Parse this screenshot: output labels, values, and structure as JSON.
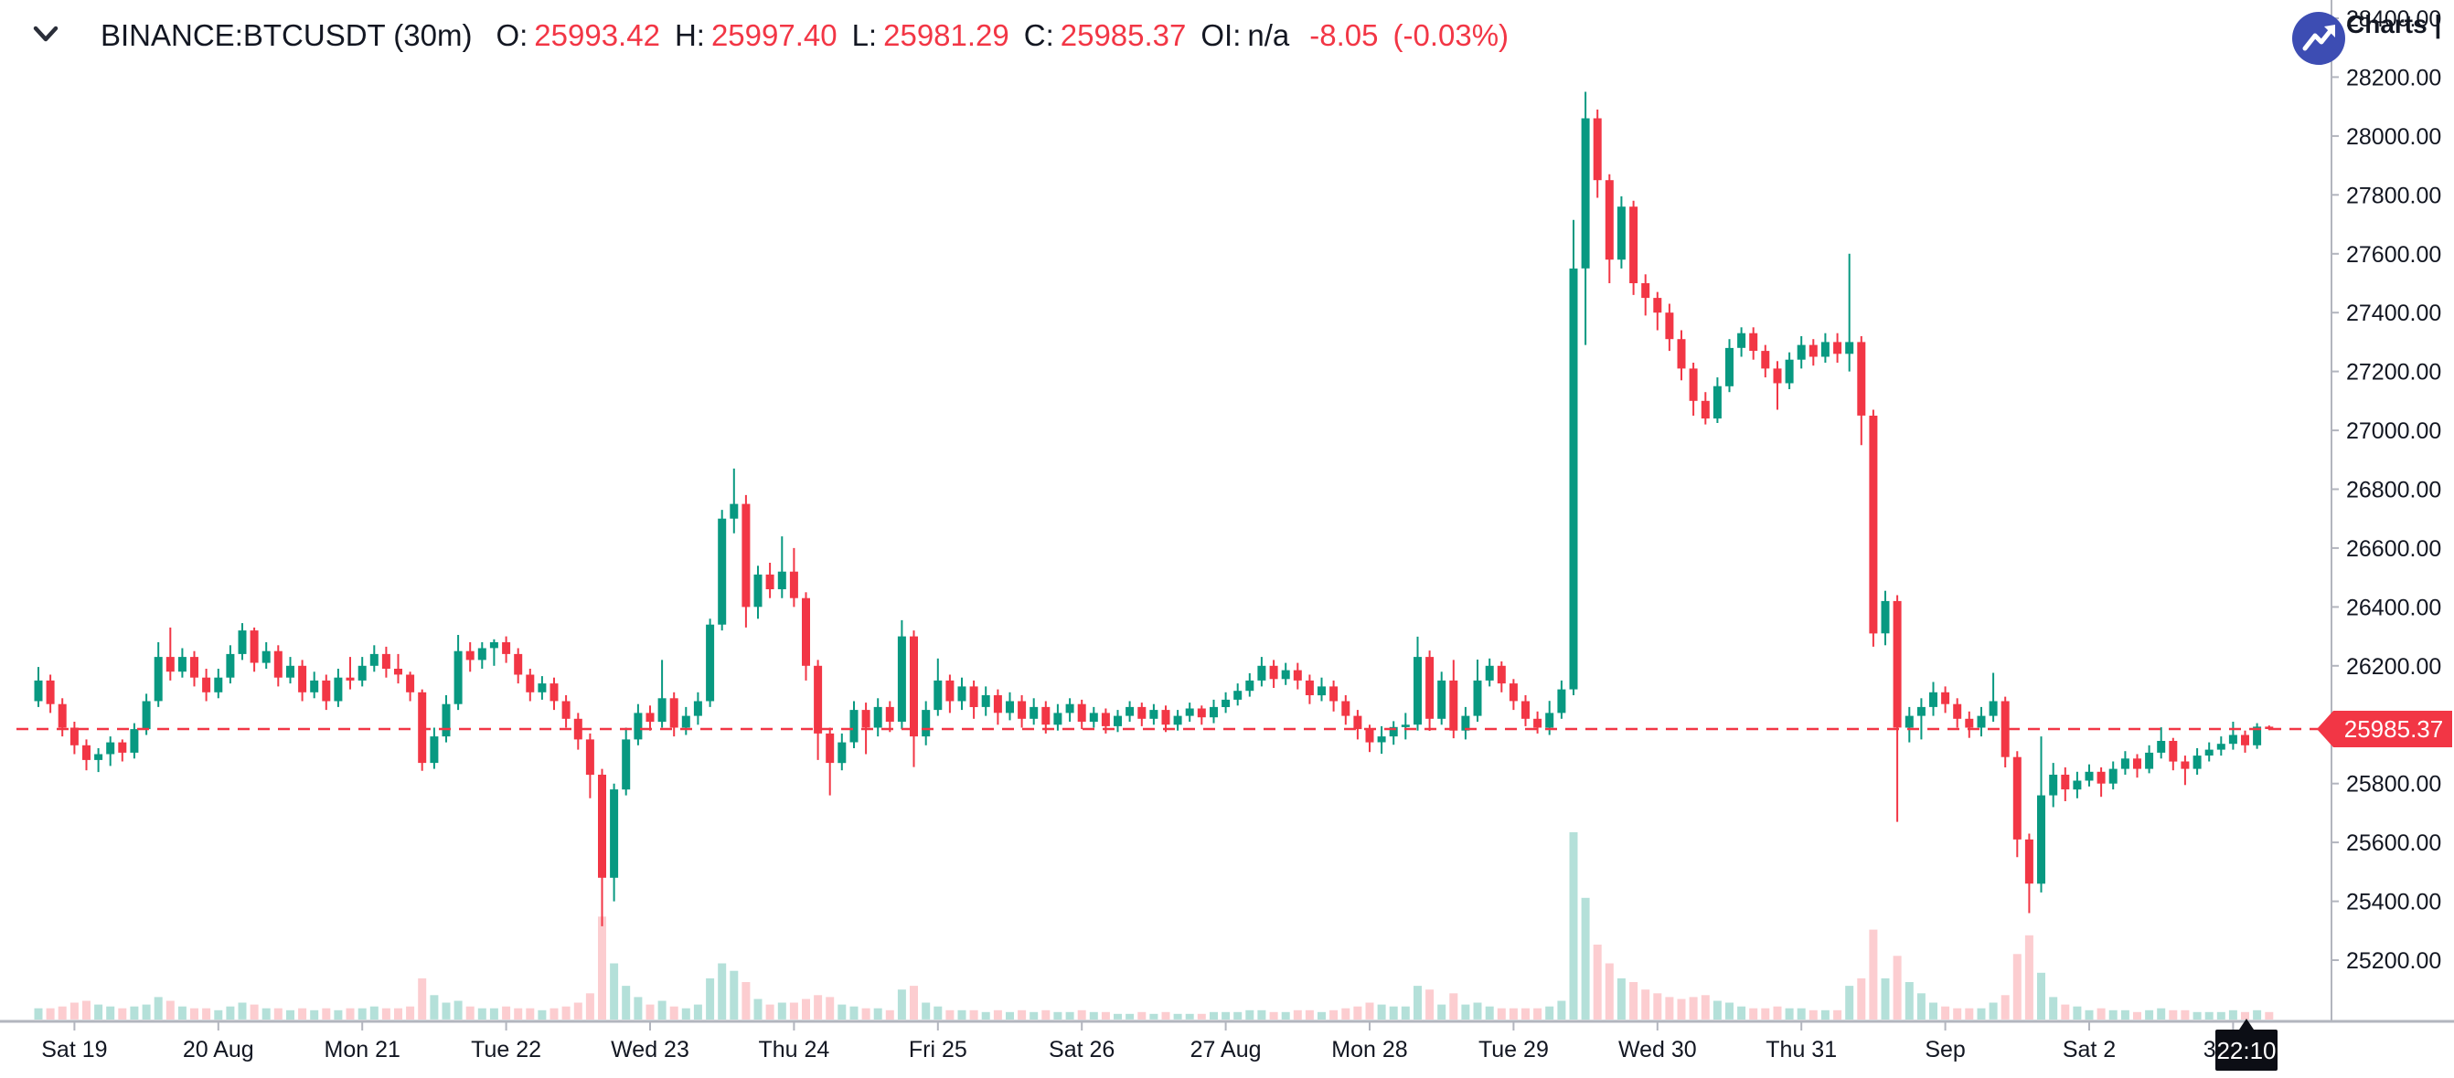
{
  "header": {
    "symbol": "BINANCE:BTCUSDT (30m)",
    "fields": [
      {
        "label": "O:",
        "value": "25993.42"
      },
      {
        "label": "H:",
        "value": "25997.40"
      },
      {
        "label": "L:",
        "value": "25981.29"
      },
      {
        "label": "C:",
        "value": "25985.37"
      },
      {
        "label": "OI:",
        "value": "n/a"
      }
    ],
    "change": "-8.05",
    "change_pct": "(-0.03%)"
  },
  "branding": {
    "charts_label": "Charts |"
  },
  "current_price": {
    "value": "25985.37",
    "time": "22:10"
  },
  "colors": {
    "up": "#089981",
    "down": "#f23645",
    "vol_up": "rgba(8,153,129,0.30)",
    "vol_down": "rgba(242,54,69,0.25)",
    "axis_line": "#b2b5be",
    "text": "#131722",
    "last_price": "#f23645",
    "time_tag_bg": "#0c0e15",
    "logo_blue": "#3d4db3"
  },
  "chart_data": {
    "type": "candlestick",
    "symbol": "BINANCE:BTCUSDT",
    "interval": "30m",
    "title": "BINANCE:BTCUSDT (30m)",
    "last_price": 25985.37,
    "last_candle": {
      "o": 25993.42,
      "h": 25997.4,
      "l": 25981.29,
      "c": 25985.37
    },
    "change": -8.05,
    "change_pct": -0.03,
    "open_interest": "n/a",
    "grid": false,
    "price_axis": {
      "side": "right",
      "min": 25200,
      "max": 28400,
      "step": 200,
      "labels": [
        "28400.00",
        "28200.00",
        "28000.00",
        "27800.00",
        "27600.00",
        "27400.00",
        "27200.00",
        "27000.00",
        "26800.00",
        "26600.00",
        "26400.00",
        "26200.00",
        "26000.00",
        "25800.00",
        "25600.00",
        "25400.00",
        "25200.00"
      ],
      "y_of_max": 20,
      "y_of_min": 1051
    },
    "time_axis": {
      "labels": [
        "Sat 19",
        "20 Aug",
        "Mon 21",
        "Tue 22",
        "Wed 23",
        "Thu 24",
        "Fri 25",
        "Sat 26",
        "27 Aug",
        "Mon 28",
        "Tue 29",
        "Wed 30",
        "Thu 31",
        "Sep",
        "Sat 2",
        "3 Sep"
      ],
      "candles_per_day": 12,
      "first_label_candle_index": 3
    },
    "volume_scale_max": 100,
    "candles_note": "each entry [open,high,low,close,relative_volume_0_100], ~2h aggregation of the 30m series as depicted",
    "candles": [
      [
        26080,
        26196,
        26060,
        26150,
        6
      ],
      [
        26150,
        26170,
        26040,
        26070,
        6
      ],
      [
        26070,
        26090,
        25960,
        25990,
        7
      ],
      [
        25990,
        26010,
        25900,
        25930,
        9
      ],
      [
        25930,
        25950,
        25845,
        25880,
        10
      ],
      [
        25880,
        25920,
        25839,
        25900,
        8
      ],
      [
        25900,
        25960,
        25860,
        25940,
        7
      ],
      [
        25940,
        25950,
        25875,
        25905,
        6
      ],
      [
        25905,
        26005,
        25885,
        25985,
        7
      ],
      [
        25985,
        26105,
        25965,
        26080,
        8
      ],
      [
        26080,
        26280,
        26060,
        26230,
        12
      ],
      [
        26230,
        26330,
        26150,
        26180,
        10
      ],
      [
        26180,
        26260,
        26160,
        26230,
        7
      ],
      [
        26230,
        26250,
        26130,
        26160,
        6
      ],
      [
        26160,
        26190,
        26080,
        26110,
        6
      ],
      [
        26110,
        26190,
        26090,
        26160,
        5
      ],
      [
        26160,
        26270,
        26140,
        26240,
        7
      ],
      [
        26240,
        26345,
        26220,
        26320,
        9
      ],
      [
        26320,
        26330,
        26180,
        26210,
        8
      ],
      [
        26210,
        26280,
        26190,
        26250,
        6
      ],
      [
        26250,
        26270,
        26130,
        26160,
        6
      ],
      [
        26160,
        26230,
        26140,
        26200,
        5
      ],
      [
        26200,
        26220,
        26080,
        26110,
        6
      ],
      [
        26110,
        26180,
        26090,
        26150,
        5
      ],
      [
        26150,
        26170,
        26050,
        26080,
        6
      ],
      [
        26080,
        26190,
        26060,
        26160,
        5
      ],
      [
        26160,
        26230,
        26120,
        26150,
        6
      ],
      [
        26150,
        26230,
        26130,
        26200,
        6
      ],
      [
        26200,
        26270,
        26180,
        26240,
        7
      ],
      [
        26240,
        26265,
        26160,
        26190,
        6
      ],
      [
        26190,
        26240,
        26140,
        26170,
        6
      ],
      [
        26170,
        26180,
        26080,
        26110,
        7
      ],
      [
        26110,
        26120,
        25843,
        25870,
        22
      ],
      [
        25870,
        25990,
        25850,
        25960,
        13
      ],
      [
        25960,
        26100,
        25940,
        26070,
        9
      ],
      [
        26070,
        26305,
        26050,
        26250,
        10
      ],
      [
        26250,
        26280,
        26180,
        26220,
        7
      ],
      [
        26220,
        26280,
        26190,
        26260,
        6
      ],
      [
        26260,
        26290,
        26200,
        26280,
        6
      ],
      [
        26280,
        26300,
        26210,
        26240,
        7
      ],
      [
        26240,
        26260,
        26140,
        26170,
        6
      ],
      [
        26170,
        26190,
        26080,
        26110,
        6
      ],
      [
        26110,
        26165,
        26085,
        26140,
        5
      ],
      [
        26140,
        26160,
        26050,
        26080,
        6
      ],
      [
        26080,
        26100,
        25990,
        26020,
        7
      ],
      [
        26020,
        26040,
        25915,
        25950,
        9
      ],
      [
        25950,
        25970,
        25750,
        25830,
        14
      ],
      [
        25830,
        25850,
        25315,
        25480,
        55
      ],
      [
        25480,
        25800,
        25400,
        25780,
        30
      ],
      [
        25780,
        25990,
        25760,
        25950,
        18
      ],
      [
        25950,
        26070,
        25930,
        26040,
        12
      ],
      [
        26040,
        26065,
        25980,
        26010,
        8
      ],
      [
        26010,
        26220,
        25990,
        26090,
        10
      ],
      [
        26090,
        26110,
        25960,
        25990,
        7
      ],
      [
        25990,
        26060,
        25965,
        26030,
        6
      ],
      [
        26030,
        26110,
        26000,
        26080,
        8
      ],
      [
        26080,
        26360,
        26060,
        26340,
        22
      ],
      [
        26340,
        26730,
        26320,
        26700,
        30
      ],
      [
        26700,
        26870,
        26650,
        26750,
        26
      ],
      [
        26750,
        26780,
        26330,
        26400,
        20
      ],
      [
        26400,
        26540,
        26360,
        26510,
        11
      ],
      [
        26510,
        26550,
        26430,
        26460,
        8
      ],
      [
        26460,
        26640,
        26430,
        26520,
        9
      ],
      [
        26520,
        26600,
        26400,
        26430,
        9
      ],
      [
        26430,
        26450,
        26150,
        26200,
        11
      ],
      [
        26200,
        26220,
        25880,
        25970,
        13
      ],
      [
        25970,
        25990,
        25760,
        25870,
        12
      ],
      [
        25870,
        25970,
        25845,
        25940,
        8
      ],
      [
        25940,
        26080,
        25920,
        26050,
        7
      ],
      [
        26050,
        26075,
        25900,
        25990,
        6
      ],
      [
        25990,
        26090,
        25960,
        26060,
        6
      ],
      [
        26060,
        26080,
        25975,
        26010,
        5
      ],
      [
        26010,
        26355,
        25985,
        26300,
        16
      ],
      [
        26300,
        26320,
        25856,
        25960,
        18
      ],
      [
        25960,
        26080,
        25930,
        26050,
        9
      ],
      [
        26050,
        26225,
        26030,
        26150,
        7
      ],
      [
        26150,
        26170,
        26040,
        26080,
        5
      ],
      [
        26080,
        26160,
        26050,
        26130,
        5
      ],
      [
        26130,
        26150,
        26020,
        26060,
        5
      ],
      [
        26060,
        26130,
        26030,
        26100,
        4
      ],
      [
        26100,
        26120,
        26000,
        26040,
        5
      ],
      [
        26040,
        26110,
        26015,
        26080,
        4
      ],
      [
        26080,
        26100,
        25990,
        26020,
        5
      ],
      [
        26020,
        26090,
        26000,
        26060,
        4
      ],
      [
        26060,
        26080,
        25970,
        26000,
        5
      ],
      [
        26000,
        26070,
        25980,
        26040,
        4
      ],
      [
        26040,
        26090,
        26010,
        26070,
        4
      ],
      [
        26070,
        26085,
        25985,
        26010,
        5
      ],
      [
        26010,
        26060,
        25990,
        26040,
        4
      ],
      [
        26040,
        26055,
        25970,
        25995,
        4
      ],
      [
        25995,
        26050,
        25975,
        26030,
        3
      ],
      [
        26030,
        26080,
        26010,
        26060,
        3
      ],
      [
        26060,
        26075,
        25995,
        26020,
        4
      ],
      [
        26020,
        26070,
        26000,
        26050,
        3
      ],
      [
        26050,
        26065,
        25975,
        26000,
        4
      ],
      [
        26000,
        26050,
        25980,
        26030,
        3
      ],
      [
        26030,
        26075,
        26010,
        26055,
        3
      ],
      [
        26055,
        26065,
        26000,
        26025,
        3
      ],
      [
        26025,
        26085,
        26005,
        26060,
        4
      ],
      [
        26060,
        26110,
        26040,
        26085,
        4
      ],
      [
        26085,
        26140,
        26065,
        26115,
        4
      ],
      [
        26115,
        26175,
        26095,
        26150,
        5
      ],
      [
        26150,
        26230,
        26130,
        26200,
        5
      ],
      [
        26200,
        26220,
        26125,
        26155,
        4
      ],
      [
        26155,
        26210,
        26135,
        26185,
        4
      ],
      [
        26185,
        26210,
        26120,
        26150,
        5
      ],
      [
        26150,
        26170,
        26070,
        26100,
        5
      ],
      [
        26100,
        26160,
        26080,
        26130,
        4
      ],
      [
        26130,
        26150,
        26045,
        26080,
        5
      ],
      [
        26080,
        26100,
        26000,
        26030,
        6
      ],
      [
        26030,
        26050,
        25950,
        25985,
        7
      ],
      [
        25985,
        26000,
        25907,
        25940,
        9
      ],
      [
        25940,
        25995,
        25901,
        25960,
        8
      ],
      [
        25960,
        26012,
        25932,
        25992,
        7
      ],
      [
        25992,
        26040,
        25950,
        26000,
        7
      ],
      [
        26000,
        26299,
        25980,
        26230,
        18
      ],
      [
        26230,
        26252,
        25979,
        26020,
        16
      ],
      [
        26020,
        26180,
        26000,
        26150,
        8
      ],
      [
        26150,
        26220,
        25954,
        25980,
        14
      ],
      [
        25980,
        26060,
        25950,
        26030,
        8
      ],
      [
        26030,
        26221,
        26010,
        26150,
        9
      ],
      [
        26150,
        26225,
        26130,
        26200,
        7
      ],
      [
        26200,
        26215,
        26110,
        26140,
        6
      ],
      [
        26140,
        26155,
        26050,
        26080,
        6
      ],
      [
        26080,
        26100,
        25995,
        26020,
        6
      ],
      [
        26020,
        26045,
        25970,
        25990,
        6
      ],
      [
        25990,
        26081,
        25965,
        26040,
        7
      ],
      [
        26040,
        26150,
        26020,
        26120,
        10
      ],
      [
        26120,
        27715,
        26100,
        27550,
        100
      ],
      [
        27550,
        28150,
        27290,
        28060,
        65
      ],
      [
        28060,
        28090,
        27790,
        27850,
        40
      ],
      [
        27850,
        27870,
        27500,
        27580,
        30
      ],
      [
        27580,
        27795,
        27550,
        27760,
        22
      ],
      [
        27760,
        27780,
        27460,
        27500,
        20
      ],
      [
        27500,
        27530,
        27390,
        27450,
        16
      ],
      [
        27450,
        27470,
        27340,
        27400,
        14
      ],
      [
        27400,
        27430,
        27270,
        27310,
        12
      ],
      [
        27310,
        27340,
        27170,
        27210,
        11
      ],
      [
        27210,
        27230,
        27050,
        27100,
        12
      ],
      [
        27100,
        27130,
        27020,
        27040,
        13
      ],
      [
        27040,
        27180,
        27025,
        27150,
        10
      ],
      [
        27150,
        27310,
        27130,
        27280,
        9
      ],
      [
        27280,
        27350,
        27250,
        27330,
        7
      ],
      [
        27330,
        27350,
        27240,
        27270,
        6
      ],
      [
        27270,
        27290,
        27180,
        27210,
        6
      ],
      [
        27210,
        27235,
        27070,
        27160,
        7
      ],
      [
        27160,
        27265,
        27140,
        27240,
        6
      ],
      [
        27240,
        27320,
        27210,
        27290,
        6
      ],
      [
        27290,
        27310,
        27220,
        27250,
        5
      ],
      [
        27250,
        27330,
        27230,
        27300,
        5
      ],
      [
        27300,
        27330,
        27230,
        27260,
        5
      ],
      [
        27260,
        27600,
        27200,
        27300,
        18
      ],
      [
        27300,
        27320,
        26950,
        27050,
        22
      ],
      [
        27050,
        27070,
        26265,
        26310,
        48
      ],
      [
        26310,
        26455,
        26270,
        26420,
        22
      ],
      [
        26420,
        26440,
        25670,
        25990,
        34
      ],
      [
        25990,
        26060,
        25940,
        26030,
        20
      ],
      [
        26030,
        26090,
        25950,
        26060,
        14
      ],
      [
        26060,
        26145,
        26030,
        26110,
        9
      ],
      [
        26110,
        26130,
        26040,
        26070,
        7
      ],
      [
        26070,
        26090,
        25990,
        26020,
        6
      ],
      [
        26020,
        26045,
        25955,
        25990,
        6
      ],
      [
        25990,
        26060,
        25960,
        26030,
        6
      ],
      [
        26030,
        26176,
        26010,
        26080,
        9
      ],
      [
        26080,
        26095,
        25855,
        25890,
        13
      ],
      [
        25890,
        25910,
        25550,
        25610,
        35
      ],
      [
        25610,
        25630,
        25360,
        25460,
        45
      ],
      [
        25460,
        25960,
        25430,
        25760,
        25
      ],
      [
        25760,
        25870,
        25720,
        25830,
        12
      ],
      [
        25830,
        25855,
        25740,
        25780,
        8
      ],
      [
        25780,
        25840,
        25750,
        25810,
        7
      ],
      [
        25810,
        25865,
        25790,
        25840,
        5
      ],
      [
        25840,
        25855,
        25755,
        25800,
        6
      ],
      [
        25800,
        25875,
        25780,
        25850,
        5
      ],
      [
        25850,
        25910,
        25830,
        25885,
        5
      ],
      [
        25885,
        25900,
        25820,
        25850,
        4
      ],
      [
        25850,
        25930,
        25835,
        25905,
        5
      ],
      [
        25905,
        25991,
        25885,
        25945,
        6
      ],
      [
        25945,
        25955,
        25845,
        25875,
        5
      ],
      [
        25875,
        25895,
        25795,
        25850,
        5
      ],
      [
        25850,
        25920,
        25830,
        25895,
        4
      ],
      [
        25895,
        25940,
        25875,
        25915,
        4
      ],
      [
        25915,
        25960,
        25895,
        25935,
        4
      ],
      [
        25935,
        26010,
        25915,
        25965,
        5
      ],
      [
        25965,
        25980,
        25905,
        25930,
        4
      ],
      [
        25930,
        26005,
        25918,
        25993.42,
        5
      ],
      [
        25993.42,
        25997.4,
        25981.29,
        25985.37,
        4
      ]
    ]
  }
}
